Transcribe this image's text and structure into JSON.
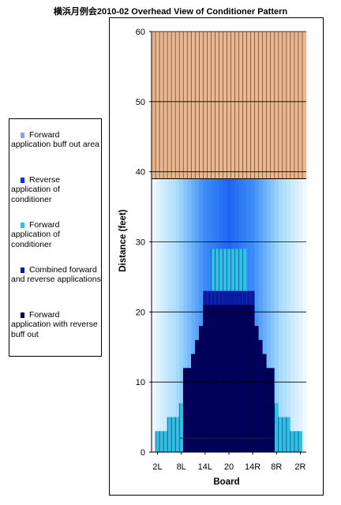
{
  "chart_data": {
    "type": "heatmap",
    "title": "横浜月例会2010-02 Overhead View of Conditioner Pattern",
    "xlabel": "Board",
    "ylabel": "Distance (feet)",
    "ylim": [
      0,
      60
    ],
    "y_ticks": [
      0,
      10,
      20,
      30,
      40,
      50,
      60
    ],
    "boards": 39,
    "x_tick_labels": [
      "2L",
      "8L",
      "14L",
      "20",
      "14R",
      "8R",
      "2R"
    ],
    "x_tick_boards": [
      2,
      8,
      14,
      20,
      26,
      32,
      38
    ],
    "grid": "horizontal gridlines every 10 feet",
    "lane_pattern": {
      "lane_end": 39,
      "forward_buffout_length": 39,
      "reverse_length": 39,
      "forward_length": 29,
      "forward_board_range": [
        16,
        24
      ],
      "combined_length": 23,
      "combined_board_range": [
        14,
        26
      ],
      "forward_reverse_buffout_board_lengths": {
        "1": 0,
        "2": 3,
        "3": 3,
        "4": 3,
        "5": 5,
        "6": 5,
        "7": 5,
        "8": 7,
        "9": 12,
        "10": 12,
        "11": 14,
        "12": 16,
        "13": 18,
        "14": 21,
        "15": 21,
        "16": 21,
        "17": 21,
        "18": 21,
        "19": 21,
        "20": 21,
        "21": 21,
        "22": 21,
        "23": 21,
        "24": 21,
        "25": 21,
        "26": 21,
        "27": 18,
        "28": 16,
        "29": 14,
        "30": 12,
        "31": 12,
        "32": 7,
        "33": 5,
        "34": 5,
        "35": 5,
        "36": 3,
        "37": 3,
        "38": 3,
        "39": 0
      },
      "forward_reverse_buffout_start": 2
    },
    "legend_position": "left",
    "series": [
      {
        "name": "Forward application buff out area",
        "color": "#8a9cf0"
      },
      {
        "name": "Reverse application of conditioner",
        "color": "#0a2ee0"
      },
      {
        "name": "Forward application of conditioner",
        "color": "#2ec0e6"
      },
      {
        "name": "Combined forward and reverse applications",
        "color": "#0a1aa0"
      },
      {
        "name": "Forward application with reverse buff out",
        "color": "#00005c"
      }
    ],
    "colors": {
      "dry_zone": "#e8b890",
      "dry_zone_stripe": "#5a2a10",
      "buffout_light": "#eef8ff",
      "buffout_mid": "#a6dcfc",
      "reverse_fill": "#1e64f0",
      "reverse_edge": "#3c8cf8",
      "grid": "#000000"
    }
  }
}
